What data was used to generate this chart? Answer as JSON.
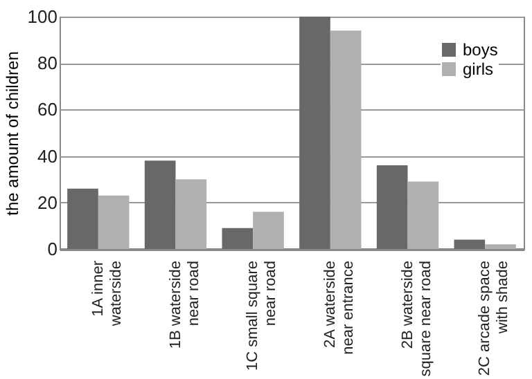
{
  "chart_data": {
    "type": "bar",
    "ylabel": "the amount of children",
    "categories": [
      "1A inner\nwaterside",
      "1B waterside\nnear road",
      "1C small square\nnear road",
      "2A waterside\nnear entrance",
      "2B waterside\nsquare near road",
      "2C arcade space\nwith shade"
    ],
    "series": [
      {
        "name": "boys",
        "color": "#686868",
        "values": [
          26,
          38,
          9,
          100,
          36,
          4
        ]
      },
      {
        "name": "girls",
        "color": "#b0b0b0",
        "values": [
          23,
          30,
          16,
          94,
          29,
          2
        ]
      }
    ],
    "ylim": [
      0,
      100
    ],
    "yticks": [
      0,
      20,
      40,
      60,
      80,
      100
    ],
    "grid": "y",
    "legend": "top right"
  }
}
